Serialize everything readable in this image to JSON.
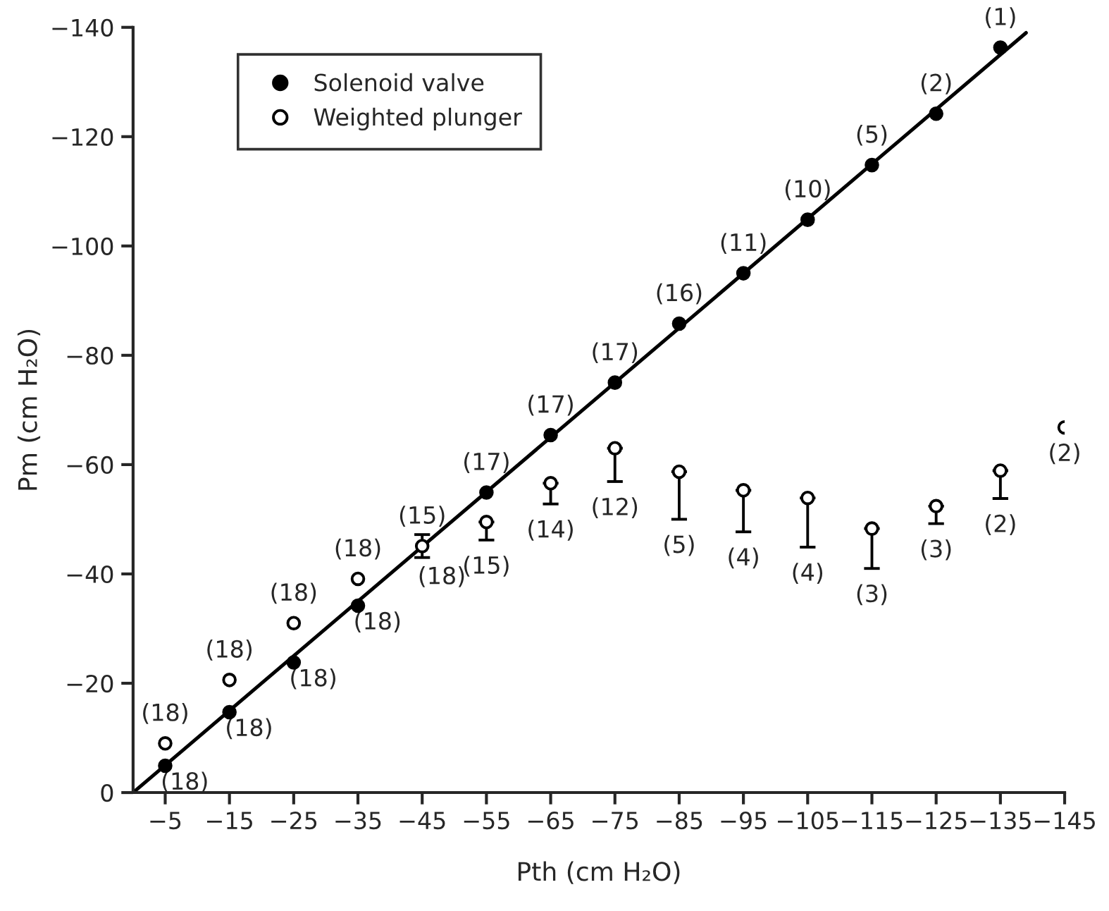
{
  "chart_data": {
    "type": "scatter",
    "xlabel": "Pth (cm H₂O)",
    "ylabel": "Pm (cm H₂O)",
    "xlim": [
      0,
      -145
    ],
    "ylim": [
      0,
      -140
    ],
    "xticks": [
      {
        "value": -5,
        "label": "−5"
      },
      {
        "value": -15,
        "label": "−15"
      },
      {
        "value": -25,
        "label": "−25"
      },
      {
        "value": -35,
        "label": "−35"
      },
      {
        "value": -45,
        "label": "−45"
      },
      {
        "value": -55,
        "label": "−55"
      },
      {
        "value": -65,
        "label": "−65"
      },
      {
        "value": -75,
        "label": "−75"
      },
      {
        "value": -85,
        "label": "−85"
      },
      {
        "value": -95,
        "label": "−95"
      },
      {
        "value": -105,
        "label": "−105"
      },
      {
        "value": -115,
        "label": "−115"
      },
      {
        "value": -125,
        "label": "−125"
      },
      {
        "value": -135,
        "label": "−135"
      },
      {
        "value": -145,
        "label": "−145"
      }
    ],
    "yticks": [
      0,
      {
        "value": -20,
        "label": "−20"
      },
      {
        "value": -40,
        "label": "−40"
      },
      {
        "value": -60,
        "label": "−60"
      },
      {
        "value": -80,
        "label": "−80"
      },
      {
        "value": -100,
        "label": "−100"
      },
      {
        "value": -120,
        "label": "−120"
      },
      {
        "value": -140,
        "label": "−140"
      }
    ],
    "legend": "top left",
    "grid": false,
    "series": [
      {
        "name": "Solenoid valve",
        "color": "#000000",
        "marker": "circle",
        "x": [
          -5,
          -15,
          -25,
          -35,
          -45,
          -55,
          -65,
          -75,
          -85,
          -95,
          -105,
          -115,
          -125,
          -135
        ],
        "values": [
          -4.9,
          -14.7,
          -23.8,
          -34.2,
          null,
          -54.9,
          -65.4,
          -75,
          -85.8,
          -95,
          -104.8,
          -114.8,
          -124.2,
          -136.3
        ]
      },
      {
        "name": "Weighted plunger",
        "color": "#000000",
        "marker": "circle",
        "x": [
          -5,
          -15,
          -25,
          -35,
          -45,
          -55,
          -65,
          -75,
          -85,
          -95,
          -105,
          -115,
          -125,
          -135,
          -145
        ],
        "values": [
          -9,
          -20.6,
          -31,
          -39.1,
          -45.1,
          -49.5,
          -56.6,
          -63,
          -58.7,
          -55.3,
          -53.9,
          -48.3,
          -52.4,
          -58.9,
          -66.8
        ],
        "errors": [
          null,
          null,
          null,
          null,
          [
            -47.2,
            -43
          ],
          [
            -49.5,
            -46.2
          ],
          [
            -56.6,
            -52.8
          ],
          [
            -63,
            -56.9
          ],
          [
            -58.7,
            -50
          ],
          [
            -55.3,
            -47.7
          ],
          [
            -53.9,
            -44.9
          ],
          [
            -48.3,
            -41
          ],
          [
            -52.4,
            -49.2
          ],
          [
            -58.9,
            -53.8
          ],
          null
        ]
      },
      {
        "type": "line",
        "color": "#000000",
        "x": [
          0,
          -139
        ],
        "values": [
          0,
          -139
        ]
      }
    ],
    "annotations": [
      {
        "text": "(18)",
        "x": -5,
        "y": -4.9
      },
      {
        "text": "(18)",
        "x": -15,
        "y": -14.7
      },
      {
        "text": "(18)",
        "x": -25,
        "y": -23.8
      },
      {
        "text": "(18)",
        "x": -35,
        "y": -34.2
      },
      {
        "text": "(18)",
        "x": -45,
        "y": -45
      },
      {
        "text": "(17)",
        "x": -55,
        "y": -54.9
      },
      {
        "text": "(17)",
        "x": -65,
        "y": -65.4
      },
      {
        "text": "(17)",
        "x": -75,
        "y": -75
      },
      {
        "text": "(16)",
        "x": -85,
        "y": -85.8
      },
      {
        "text": "(11)",
        "x": -95,
        "y": -95
      },
      {
        "text": "(10)",
        "x": -105,
        "y": -104.8
      },
      {
        "text": "(5)",
        "x": -115,
        "y": -114.8
      },
      {
        "text": "(2)",
        "x": -125,
        "y": -124.2
      },
      {
        "text": "(1)",
        "x": -135,
        "y": -136.3
      },
      {
        "text": "(18)",
        "x": -5,
        "y": -9
      },
      {
        "text": "(18)",
        "x": -15,
        "y": -20.6
      },
      {
        "text": "(18)",
        "x": -25,
        "y": -31
      },
      {
        "text": "(18)",
        "x": -35,
        "y": -39.1
      },
      {
        "text": "(15)",
        "x": -45,
        "y": -45.1
      },
      {
        "text": "(15)",
        "x": -55,
        "y": -49.5
      },
      {
        "text": "(14)",
        "x": -65,
        "y": -56.6
      },
      {
        "text": "(12)",
        "x": -75,
        "y": -63
      },
      {
        "text": "(5)",
        "x": -85,
        "y": -58.7
      },
      {
        "text": "(4)",
        "x": -95,
        "y": -55.3
      },
      {
        "text": "(4)",
        "x": -105,
        "y": -53.9
      },
      {
        "text": "(3)",
        "x": -115,
        "y": -48.3
      },
      {
        "text": "(3)",
        "x": -125,
        "y": -52.4
      },
      {
        "text": "(2)",
        "x": -135,
        "y": -58.9
      },
      {
        "text": "(2)",
        "x": -145,
        "y": -66.8
      }
    ]
  }
}
